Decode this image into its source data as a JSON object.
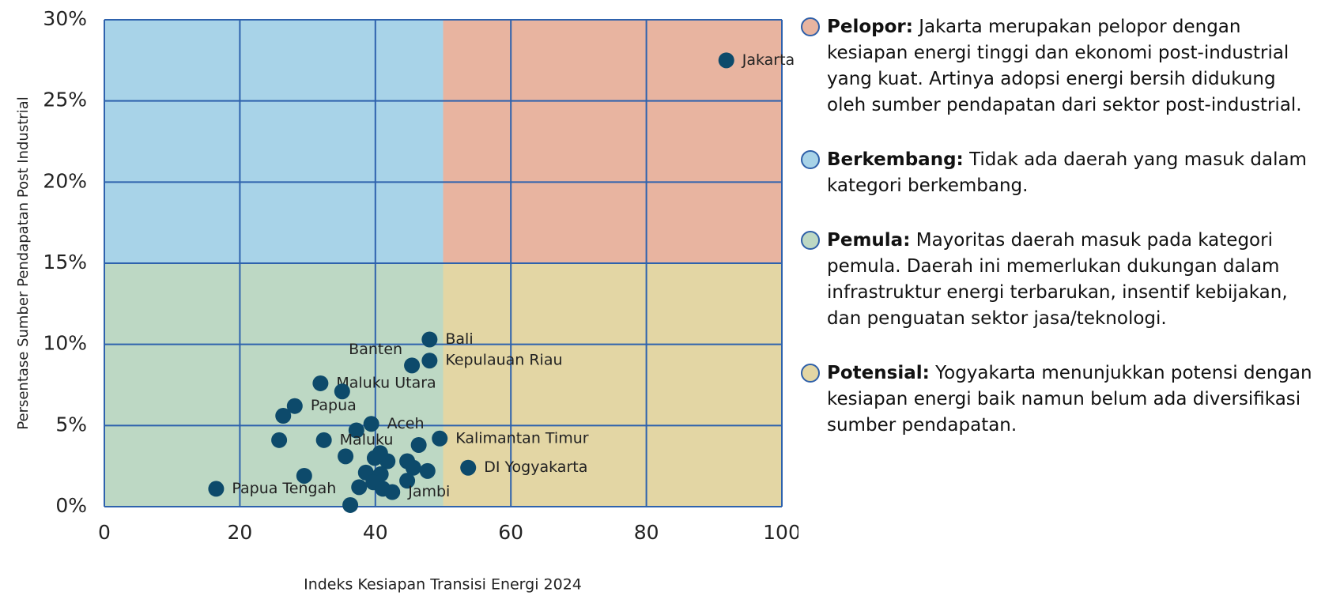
{
  "chart_data": {
    "type": "scatter",
    "xlabel": "Indeks Kesiapan Transisi Energi 2024",
    "ylabel": "Persentase Sumber Pendapatan Post Industrial",
    "xlim": [
      0,
      100
    ],
    "ylim": [
      0,
      30
    ],
    "xticks": [
      0,
      20,
      40,
      60,
      80,
      100
    ],
    "yticks": [
      {
        "value": 0,
        "label": "0%"
      },
      {
        "value": 5,
        "label": "5%"
      },
      {
        "value": 10,
        "label": "10%"
      },
      {
        "value": 15,
        "label": "15%"
      },
      {
        "value": 20,
        "label": "20%"
      },
      {
        "value": 25,
        "label": "25%"
      },
      {
        "value": 30,
        "label": "30%"
      }
    ],
    "grid": true,
    "quadrant_split_x": 50,
    "quadrant_split_y": 15,
    "series": [
      {
        "color": "#0d4a6b",
        "x": [
          91.8,
          48.0,
          45.4,
          48.0,
          31.9,
          35.1,
          28.1,
          26.4,
          39.4,
          37.2,
          32.4,
          25.8,
          49.5,
          46.4,
          53.7,
          35.6,
          39.9,
          41.8,
          44.7,
          40.7,
          45.6,
          47.7,
          38.6,
          40.8,
          29.5,
          39.7,
          44.7,
          37.6,
          41.1,
          42.5,
          16.5,
          36.3
        ],
        "values": [
          27.5,
          10.3,
          8.7,
          9.0,
          7.6,
          7.1,
          6.2,
          5.6,
          5.1,
          4.7,
          4.1,
          4.1,
          4.2,
          3.8,
          2.4,
          3.1,
          3.0,
          2.8,
          2.8,
          3.3,
          2.4,
          2.2,
          2.1,
          2.0,
          1.9,
          1.5,
          1.6,
          1.2,
          1.1,
          0.9,
          1.1,
          0.1
        ],
        "labels": [
          "Jakarta",
          "Bali",
          "Banten",
          "Kepulauan Riau",
          "Maluku Utara",
          null,
          "Papua",
          null,
          "Aceh",
          null,
          "Maluku",
          null,
          "Kalimantan Timur",
          null,
          "DI Yogyakarta",
          null,
          null,
          null,
          null,
          null,
          null,
          null,
          null,
          null,
          null,
          null,
          null,
          null,
          null,
          "Jambi",
          "Papua Tengah",
          null
        ]
      }
    ],
    "legend": [
      {
        "color": "#e8b4a0",
        "title": "Pelopor:",
        "text": "Jakarta merupakan pelopor dengan kesiapan energi tinggi dan ekonomi post-industrial yang kuat. Artinya adopsi energi bersih didukung oleh sumber pendapatan dari sektor post-industrial."
      },
      {
        "color": "#a8d3e8",
        "title": "Berkembang:",
        "text": "Tidak ada daerah yang masuk dalam kategori berkembang."
      },
      {
        "color": "#bdd8c4",
        "title": "Pemula:",
        "text": "Mayoritas daerah masuk pada kategori pemula. Daerah ini memerlukan dukungan dalam infrastruktur energi terbarukan, insentif kebijakan, dan penguatan sektor jasa/teknologi."
      },
      {
        "color": "#e3d6a4",
        "title": "Potensial:",
        "text": "Yogyakarta menunjukkan potensi dengan kesiapan energi baik namun belum ada diversifikasi sumber pendapatan."
      }
    ]
  }
}
